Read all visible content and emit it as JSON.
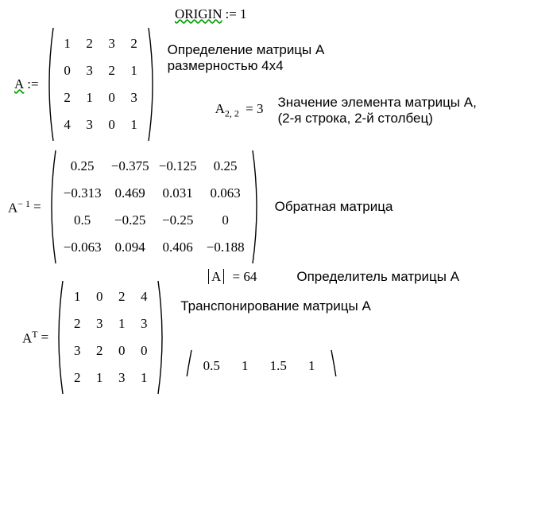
{
  "origin": {
    "label": "ORIGIN",
    "assign": ":= 1"
  },
  "A_def": {
    "lhs": "A",
    "assign": ":=",
    "rows": [
      [
        "1",
        "2",
        "3",
        "2"
      ],
      [
        "0",
        "3",
        "2",
        "1"
      ],
      [
        "2",
        "1",
        "0",
        "3"
      ],
      [
        "4",
        "3",
        "0",
        "1"
      ]
    ],
    "cellw": "28px",
    "comment1": "Определение матрицы А",
    "comment2": "размерностью 4х4"
  },
  "A_elem": {
    "expr_base": "A",
    "expr_sub": "2, 2",
    "eq": "= 3",
    "comment1": "Значение элемента матрицы А,",
    "comment2": "(2-я строка, 2-й столбец)"
  },
  "A_inv": {
    "lhs_base": "A",
    "lhs_sup": "− 1",
    "eq": "=",
    "rows": [
      [
        "0.25",
        "−0.375",
        "−0.125",
        "0.25"
      ],
      [
        "−0.313",
        "0.469",
        "0.031",
        "0.063"
      ],
      [
        "0.5",
        "−0.25",
        "−0.25",
        "0"
      ],
      [
        "−0.063",
        "0.094",
        "0.406",
        "−0.188"
      ]
    ],
    "cellw": "60px",
    "comment": "Обратная матрица"
  },
  "A_det": {
    "inner": "A",
    "eq": "= 64",
    "comment": "Определитель матрицы А"
  },
  "A_trans": {
    "lhs_base": "A",
    "lhs_sup": "T",
    "eq": "=",
    "rows": [
      [
        "1",
        "0",
        "2",
        "4"
      ],
      [
        "2",
        "3",
        "1",
        "3"
      ],
      [
        "3",
        "2",
        "0",
        "0"
      ],
      [
        "2",
        "1",
        "3",
        "1"
      ]
    ],
    "cellw": "28px",
    "comment": "Транспонирование матрицы А"
  },
  "A_partial": {
    "row": [
      "0.5",
      "1",
      "1.5",
      "1"
    ],
    "cellw": "42px"
  }
}
